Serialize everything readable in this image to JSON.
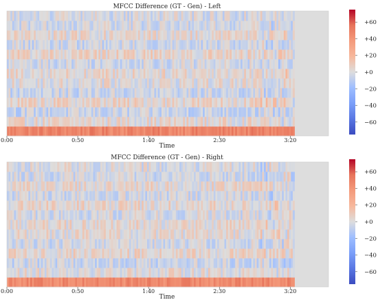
{
  "chart_data": [
    {
      "type": "heatmap",
      "title": "MFCC Difference (GT - Gen) - Left",
      "xlabel": "Time",
      "ylabel": "",
      "x_ticks": [
        "0:00",
        "0:50",
        "1:40",
        "2:30",
        "3:20"
      ],
      "x_tick_seconds": [
        0,
        50,
        100,
        150,
        200
      ],
      "x_range_seconds": [
        0,
        227
      ],
      "data_end_seconds": 203,
      "n_coefficients": 13,
      "colormap": "coolwarm",
      "colorbar": {
        "range": [
          -75,
          75
        ],
        "ticks": [
          "+60",
          "+40",
          "+20",
          "+0",
          "−20",
          "−40",
          "−60"
        ],
        "tick_values": [
          60,
          40,
          20,
          0,
          -20,
          -40,
          -60
        ]
      },
      "row_profile": [
        48,
        3,
        -6,
        5,
        -5,
        1,
        4,
        -3,
        5,
        -4,
        3,
        -3,
        -2
      ],
      "description_trend": "Coefficient 0 (bottom row) strongly positive (~+45); higher coefficients fluctuate near 0 (about −10 to +10)"
    },
    {
      "type": "heatmap",
      "title": "MFCC Difference (GT - Gen) - Right",
      "xlabel": "Time",
      "ylabel": "",
      "x_ticks": [
        "0:00",
        "0:50",
        "1:40",
        "2:30",
        "3:20"
      ],
      "x_tick_seconds": [
        0,
        50,
        100,
        150,
        200
      ],
      "x_range_seconds": [
        0,
        227
      ],
      "data_end_seconds": 203,
      "n_coefficients": 13,
      "colormap": "coolwarm",
      "colorbar": {
        "range": [
          -75,
          75
        ],
        "ticks": [
          "+60",
          "+40",
          "+20",
          "+0",
          "−20",
          "−40",
          "−60"
        ],
        "tick_values": [
          60,
          40,
          20,
          0,
          -20,
          -40,
          -60
        ]
      },
      "row_profile": [
        46,
        2,
        -5,
        4,
        -4,
        2,
        3,
        -2,
        4,
        -3,
        3,
        -3,
        -1
      ],
      "description_trend": "Coefficient 0 (bottom row) strongly positive (~+45); higher coefficients fluctuate near 0"
    }
  ]
}
